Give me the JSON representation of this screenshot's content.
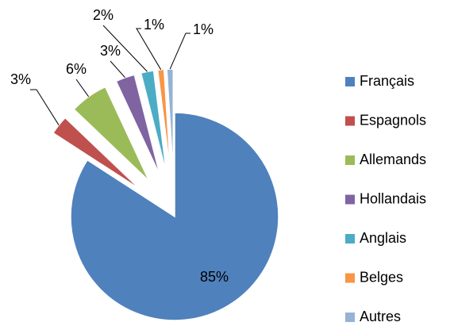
{
  "chart_data": {
    "type": "pie",
    "categories": [
      "Français",
      "Espagnols",
      "Allemands",
      "Hollandais",
      "Anglais",
      "Belges",
      "Autres"
    ],
    "values": [
      85,
      3,
      6,
      3,
      2,
      1,
      1
    ],
    "value_labels": [
      "85%",
      "3%",
      "6%",
      "3%",
      "2%",
      "1%",
      "1%"
    ],
    "colors": [
      "#4f81bd",
      "#c0504d",
      "#9bbb59",
      "#8064a2",
      "#4bacc6",
      "#f79646",
      "#95b3d7"
    ],
    "legend": "right"
  }
}
